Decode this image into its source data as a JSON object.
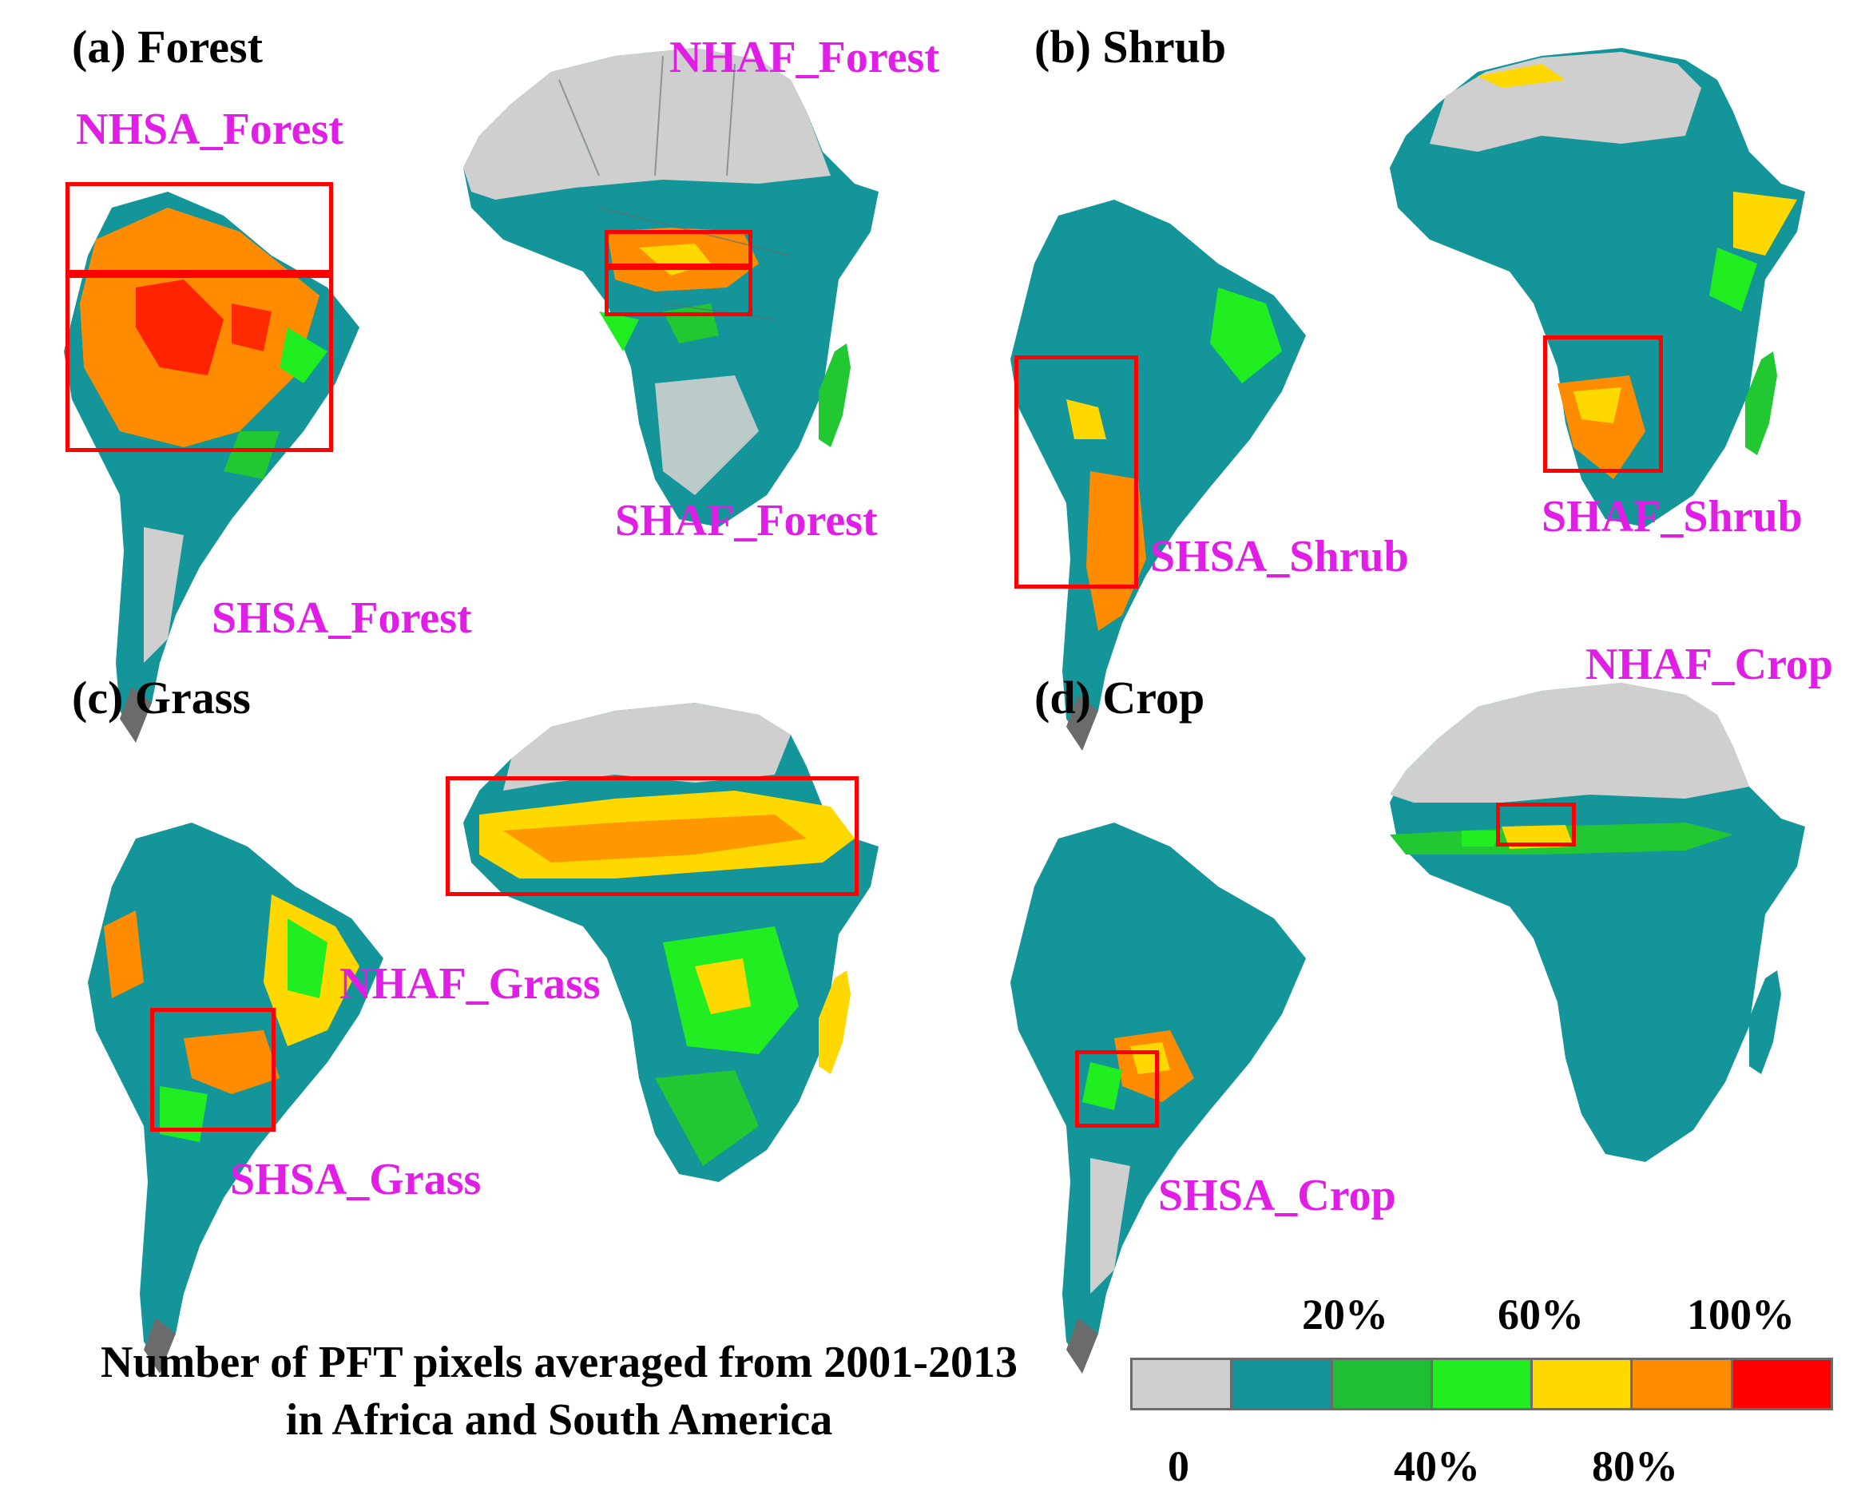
{
  "figure": {
    "legend_title_line1": "Number of PFT pixels averaged from 2001-2013",
    "legend_title_line2": "in Africa and South America",
    "legend_ticks": [
      "0",
      "20%",
      "40%",
      "60%",
      "80%",
      "100%"
    ],
    "legend_colors": [
      "#cfcfcf",
      "#14959a",
      "#1fbf35",
      "#21ee21",
      "#ffd800",
      "#ff8c00",
      "#ff0000"
    ]
  },
  "panels": [
    {
      "id": "a",
      "title": "(a) Forest",
      "labels": [
        "NHSA_Forest",
        "NHAF_Forest",
        "SHAF_Forest",
        "SHSA_Forest"
      ]
    },
    {
      "id": "b",
      "title": "(b) Shrub",
      "labels": [
        "SHSA_Shrub",
        "SHAF_Shrub"
      ]
    },
    {
      "id": "c",
      "title": "(c) Grass",
      "labels": [
        "NHAF_Grass",
        "SHSA_Grass"
      ]
    },
    {
      "id": "d",
      "title": "(d) Crop",
      "labels": [
        "NHAF_Crop",
        "SHSA_Crop"
      ]
    }
  ],
  "colors": {
    "land_teal": "#14959a",
    "desert": "#cfcfcf",
    "green": "#21c832",
    "bright_green": "#21ee21",
    "yellow": "#ffd800",
    "orange": "#ff8c00",
    "red": "#ff0000",
    "label_magenta": "#e01ee6",
    "box_red": "#ff0000"
  }
}
